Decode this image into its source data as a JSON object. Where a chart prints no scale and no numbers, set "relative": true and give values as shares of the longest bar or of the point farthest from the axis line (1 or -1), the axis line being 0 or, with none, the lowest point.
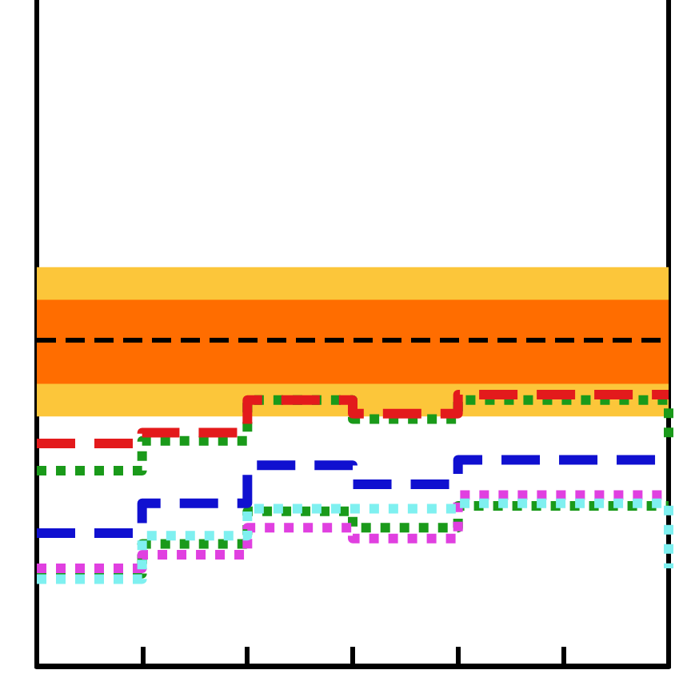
{
  "chart_data": {
    "type": "step",
    "relative": true,
    "categories": [
      null,
      null,
      null,
      null,
      null,
      null,
      null
    ],
    "series": [
      {
        "color": "#e31a1c",
        "line_style": "dashed",
        "values": [
          0.82,
          0.86,
          0.98,
          0.93,
          1.0,
          1.0,
          1.0
        ]
      },
      {
        "color": "#1a9a1a",
        "line_style": "dotted",
        "values": [
          0.72,
          0.83,
          0.98,
          0.91,
          0.98,
          0.98,
          0.83
        ]
      },
      {
        "color": "#1010d0",
        "line_style": "dashed",
        "values": [
          0.49,
          0.6,
          0.74,
          0.67,
          0.76,
          0.76,
          0.76
        ]
      },
      {
        "color": "#7ff0f0",
        "line_style": "dotted",
        "values": [
          0.32,
          0.48,
          0.58,
          0.58,
          0.6,
          0.6,
          0.36
        ]
      },
      {
        "color": "#e040e0",
        "line_style": "dotted",
        "values": [
          0.36,
          0.41,
          0.51,
          0.47,
          0.63,
          0.63,
          0.63
        ]
      },
      {
        "color": "#1a9a1a",
        "line_style": "dotted",
        "values": [
          0.34,
          0.45,
          0.57,
          0.51,
          0.59,
          0.59,
          0.59
        ]
      }
    ],
    "bands": [
      {
        "axis": "y",
        "from": 0.92,
        "to": 1.47,
        "color": "#fcc63a"
      },
      {
        "axis": "y",
        "from": 1.04,
        "to": 1.35,
        "color": "#ff6d00"
      }
    ],
    "ref_lines": [
      {
        "axis": "y",
        "value": 1.2,
        "color": "#000000",
        "line_style": "dashed"
      }
    ],
    "grid": false
  }
}
